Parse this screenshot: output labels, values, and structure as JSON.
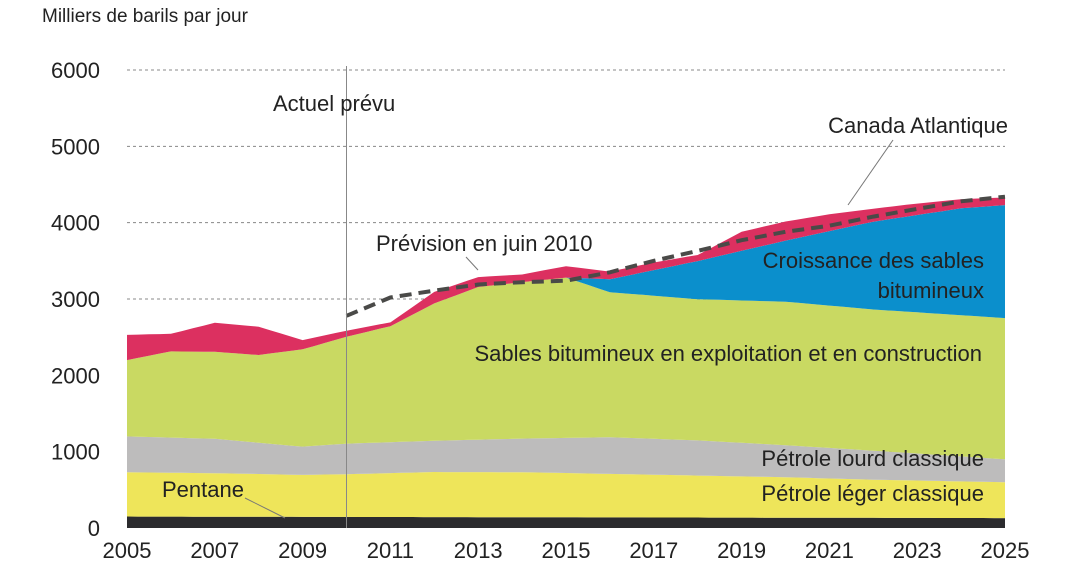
{
  "chart_data": {
    "type": "area",
    "title": "",
    "ylabel": "Milliers de barils par jour",
    "xlabel": "",
    "ylim": [
      0,
      6000
    ],
    "yticks": [
      0,
      1000,
      2000,
      3000,
      4000,
      5000,
      6000
    ],
    "xlim": [
      2005,
      2025
    ],
    "xticks": [
      2005,
      2007,
      2009,
      2011,
      2013,
      2015,
      2017,
      2019,
      2021,
      2023,
      2025
    ],
    "grid": true,
    "series": [
      {
        "name": "Pentane",
        "color": "#2b2b2e",
        "x": [
          2005,
          2025
        ],
        "values": [
          150,
          130
        ]
      },
      {
        "name": "Pétrole léger classique",
        "color": "#eee55a",
        "x": [
          2005,
          2007,
          2009,
          2010,
          2012,
          2014,
          2016,
          2018,
          2020,
          2022,
          2025
        ],
        "values": [
          580,
          570,
          550,
          560,
          590,
          590,
          570,
          550,
          530,
          500,
          470
        ]
      },
      {
        "name": "Pétrole lourd classique",
        "color": "#bdbcbc",
        "x": [
          2005,
          2007,
          2009,
          2010,
          2012,
          2014,
          2016,
          2018,
          2020,
          2022,
          2025
        ],
        "values": [
          470,
          450,
          370,
          400,
          410,
          440,
          480,
          460,
          420,
          380,
          300
        ]
      },
      {
        "name": "Sables bitumineux en exploitation et en construction",
        "color": "#c9d962",
        "x": [
          2005,
          2006,
          2008,
          2010,
          2011,
          2012,
          2013,
          2014,
          2015,
          2016,
          2018,
          2020,
          2022,
          2024,
          2025
        ],
        "values": [
          1000,
          1130,
          1150,
          1400,
          1520,
          1800,
          2000,
          2050,
          2100,
          1900,
          1850,
          1880,
          1850,
          1850,
          1850
        ]
      },
      {
        "name": "Croissance des sables bitumineux",
        "color": "#0b8fcc",
        "x": [
          2005,
          2015,
          2016,
          2018,
          2020,
          2022,
          2024,
          2025
        ],
        "values": [
          0,
          0,
          170,
          500,
          800,
          1150,
          1400,
          1480
        ]
      },
      {
        "name": "Canada Atlantique",
        "color": "#dc3060",
        "x": [
          2005,
          2006,
          2007,
          2008,
          2009,
          2010,
          2011,
          2012,
          2013,
          2014,
          2015,
          2016,
          2017,
          2018,
          2019,
          2020,
          2021,
          2022,
          2023,
          2024,
          2025
        ],
        "values": [
          330,
          230,
          380,
          370,
          120,
          80,
          50,
          150,
          130,
          100,
          150,
          100,
          100,
          80,
          250,
          250,
          220,
          170,
          150,
          120,
          100
        ]
      }
    ],
    "forecast_line": {
      "name": "Prévision en juin 2010",
      "x": [
        2010,
        2011,
        2012,
        2013,
        2014,
        2015,
        2016,
        2017,
        2018,
        2019,
        2020,
        2021,
        2022,
        2023,
        2024,
        2025
      ],
      "values": [
        2780,
        3020,
        3110,
        3190,
        3220,
        3240,
        3350,
        3500,
        3630,
        3770,
        3880,
        3960,
        4080,
        4180,
        4280,
        4340
      ]
    },
    "divider": {
      "x": 2010,
      "label": "Actuel prévu"
    },
    "annotations": [
      "Canada Atlantique",
      "Prévision en juin 2010",
      "Croissance des sables",
      "bitumineux",
      "Sables bitumineux en exploitation et en construction",
      "Pétrole lourd classique",
      "Pétrole léger classique",
      "Pentane"
    ]
  }
}
